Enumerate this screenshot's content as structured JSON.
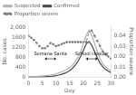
{
  "chart_data": {
    "type": "line",
    "x_label": "Day",
    "y_label": "No. cases",
    "y2_label": "Proportion severe",
    "x": [
      0,
      1,
      2,
      3,
      4,
      5,
      6,
      7,
      8,
      9,
      10,
      11,
      12,
      13,
      14,
      15,
      16,
      17,
      18,
      19,
      20,
      21,
      22,
      23,
      24,
      25,
      26,
      27,
      28,
      29,
      30
    ],
    "xlim": [
      0,
      30
    ],
    "xticks": [
      0,
      5,
      10,
      15,
      20,
      25,
      30
    ],
    "ylim": [
      0,
      2100
    ],
    "yticks": [
      0,
      400,
      800,
      1200,
      1600,
      {
        "value": 2000,
        "label": "2,000"
      }
    ],
    "y2lim": [
      0,
      0.05
    ],
    "y2ticks": [
      {
        "value": 0,
        "label": "0.00"
      },
      0.01,
      0.02,
      0.03,
      0.04
    ],
    "series": [
      {
        "name": "Suspected",
        "color": "#b0b0b0",
        "line_style": "solid",
        "values": [
          30,
          35,
          40,
          45,
          50,
          60,
          70,
          85,
          100,
          120,
          150,
          180,
          220,
          270,
          330,
          400,
          500,
          640,
          820,
          1050,
          1380,
          1700,
          1900,
          1700,
          1380,
          1050,
          750,
          550,
          420,
          330,
          260
        ]
      },
      {
        "name": "Confirmed",
        "color": "#444444",
        "line_style": "solid",
        "values": [
          10,
          12,
          14,
          16,
          18,
          20,
          25,
          32,
          40,
          52,
          70,
          95,
          125,
          165,
          215,
          280,
          370,
          490,
          650,
          860,
          1100,
          1350,
          1450,
          1300,
          1050,
          800,
          580,
          430,
          320,
          250,
          195
        ]
      },
      {
        "name": "Proportion severe",
        "color": "#777777",
        "line_style": "dashed",
        "marker": "point",
        "axis": "y2",
        "values": [
          0.04,
          0.038,
          0.036,
          0.033,
          0.03,
          0.028,
          0.028,
          0.03,
          0.033,
          0.032,
          0.03,
          0.031,
          0.032,
          0.033,
          0.034,
          0.034,
          0.034,
          0.034,
          0.034,
          0.034,
          0.034,
          0.034,
          0.044,
          0.045,
          0.04,
          0.035,
          0.03,
          0.025,
          0.022,
          0.02,
          0.018
        ]
      }
    ],
    "annotations": [
      {
        "text": "Semana Santa",
        "x1": 6,
        "x2": 10,
        "y": 750,
        "text_y": 870
      },
      {
        "text": "School closure",
        "x1": 21,
        "x2": 25,
        "y": 750,
        "text_y": 870
      }
    ],
    "legend": "upper left",
    "grid": false
  }
}
